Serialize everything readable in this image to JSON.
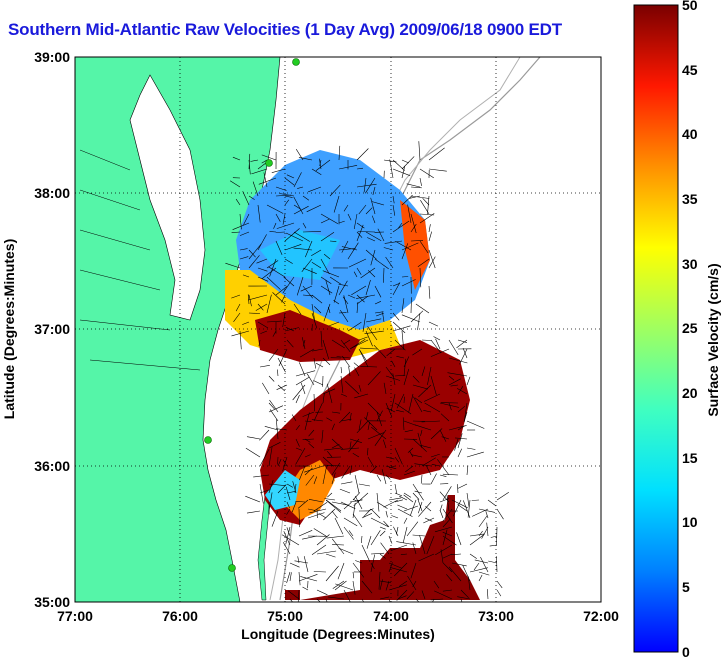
{
  "title": "Southern Mid-Atlantic Raw Velocities (1 Day Avg) 2009/06/18 0900 EDT",
  "x_axis": {
    "label": "Longitude (Degrees:Minutes)",
    "ticks": [
      "77:00",
      "76:00",
      "75:00",
      "74:00",
      "73:00",
      "72:00"
    ]
  },
  "y_axis": {
    "label": "Latitude (Degrees:Minutes)",
    "ticks": [
      "39:00",
      "38:00",
      "37:00",
      "36:00",
      "35:00"
    ]
  },
  "colorbar": {
    "label": "Surface Velocity (cm/s)",
    "ticks": [
      "0",
      "5",
      "10",
      "15",
      "20",
      "25",
      "30",
      "35",
      "40",
      "45",
      "50"
    ],
    "min": 0,
    "max": 50
  },
  "colors": {
    "land": "#55f5a8",
    "title": "#1a1adb",
    "station": "#22cc22"
  },
  "map_extent": {
    "lon_min": -77,
    "lon_max": -72,
    "lat_min": 35,
    "lat_max": 39
  },
  "velocity_field": [
    {
      "region": "north-central",
      "lon": -74.6,
      "lat": 37.7,
      "speed": 8
    },
    {
      "region": "north-west-edge",
      "lon": -75.2,
      "lat": 37.3,
      "speed": 30
    },
    {
      "region": "central-jet",
      "lon": -74.9,
      "lat": 37.0,
      "speed": 48
    },
    {
      "region": "east-edge",
      "lon": -74.0,
      "lat": 37.6,
      "speed": 35
    },
    {
      "region": "south-central",
      "lon": -74.3,
      "lat": 36.3,
      "speed": 48
    },
    {
      "region": "south-west",
      "lon": -75.0,
      "lat": 35.9,
      "speed": 15
    },
    {
      "region": "southern-strip",
      "lon": -74.0,
      "lat": 35.2,
      "speed": 50
    }
  ]
}
